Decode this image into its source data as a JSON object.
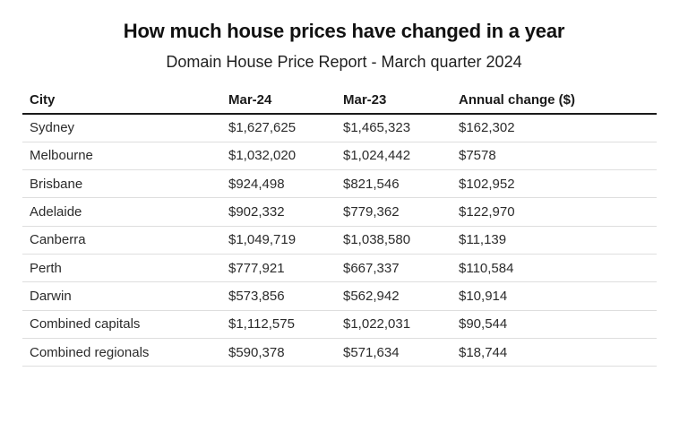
{
  "page": {
    "title": "How much house prices have changed in a year",
    "subtitle": "Domain House Price Report - March quarter 2024"
  },
  "colors": {
    "text": "#2b2b2b",
    "header_rule": "#1a1a1a",
    "row_divider": "#dedede",
    "background": "#ffffff"
  },
  "table": {
    "columns": [
      "City",
      "Mar-24",
      "Mar-23",
      "Annual change ($)"
    ],
    "rows": [
      {
        "city": "Sydney",
        "mar24": "$1,627,625",
        "mar23": "$1,465,323",
        "change": "$162,302"
      },
      {
        "city": "Melbourne",
        "mar24": "$1,032,020",
        "mar23": "$1,024,442",
        "change": "$7578"
      },
      {
        "city": "Brisbane",
        "mar24": "$924,498",
        "mar23": "$821,546",
        "change": "$102,952"
      },
      {
        "city": "Adelaide",
        "mar24": "$902,332",
        "mar23": "$779,362",
        "change": "$122,970"
      },
      {
        "city": "Canberra",
        "mar24": "$1,049,719",
        "mar23": "$1,038,580",
        "change": "$11,139"
      },
      {
        "city": "Perth",
        "mar24": "$777,921",
        "mar23": "$667,337",
        "change": "$110,584"
      },
      {
        "city": "Darwin",
        "mar24": "$573,856",
        "mar23": "$562,942",
        "change": "$10,914"
      },
      {
        "city": "Combined capitals",
        "mar24": "$1,112,575",
        "mar23": "$1,022,031",
        "change": "$90,544"
      },
      {
        "city": "Combined regionals",
        "mar24": "$590,378",
        "mar23": "$571,634",
        "change": "$18,744"
      }
    ]
  },
  "chart_data": {
    "type": "table",
    "title": "How much house prices have changed in a year",
    "subtitle": "Domain House Price Report - March quarter 2024",
    "columns": [
      "City",
      "Mar-24",
      "Mar-23",
      "Annual change ($)"
    ],
    "categories": [
      "Sydney",
      "Melbourne",
      "Brisbane",
      "Adelaide",
      "Canberra",
      "Perth",
      "Darwin",
      "Combined capitals",
      "Combined regionals"
    ],
    "series": [
      {
        "name": "Mar-24",
        "values": [
          1627625,
          1032020,
          924498,
          902332,
          1049719,
          777921,
          573856,
          1112575,
          590378
        ]
      },
      {
        "name": "Mar-23",
        "values": [
          1465323,
          1024442,
          821546,
          779362,
          1038580,
          667337,
          562942,
          1022031,
          571634
        ]
      },
      {
        "name": "Annual change ($)",
        "values": [
          162302,
          7578,
          102952,
          122970,
          11139,
          110584,
          10914,
          90544,
          18744
        ]
      }
    ]
  }
}
